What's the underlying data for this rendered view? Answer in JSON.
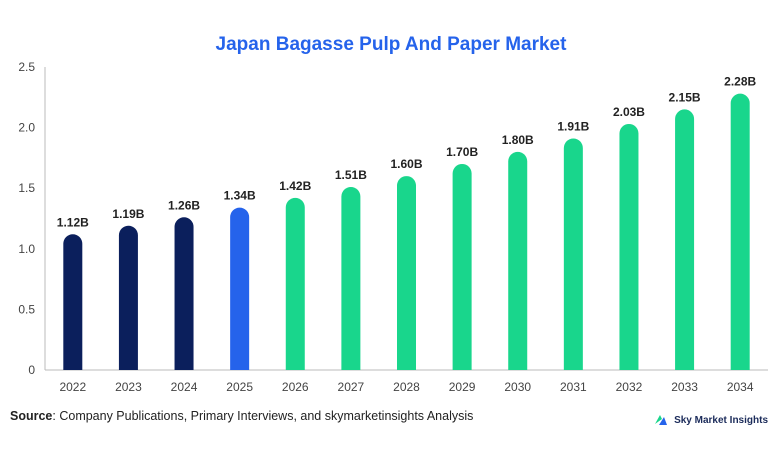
{
  "chart_data": {
    "type": "bar",
    "title": "Japan Bagasse Pulp And Paper Market",
    "categories": [
      "2022",
      "2023",
      "2024",
      "2025",
      "2026",
      "2027",
      "2028",
      "2029",
      "2030",
      "2031",
      "2032",
      "2033",
      "2034"
    ],
    "values": [
      1.12,
      1.19,
      1.26,
      1.34,
      1.42,
      1.51,
      1.6,
      1.7,
      1.8,
      1.91,
      2.03,
      2.15,
      2.28
    ],
    "data_labels": [
      "1.12B",
      "1.19B",
      "1.26B",
      "1.34B",
      "1.42B",
      "1.51B",
      "1.60B",
      "1.70B",
      "1.80B",
      "1.91B",
      "2.03B",
      "2.15B",
      "2.28B"
    ],
    "bar_colors": [
      "#0b1f5c",
      "#0b1f5c",
      "#0b1f5c",
      "#2563eb",
      "#19d68c",
      "#19d68c",
      "#19d68c",
      "#19d68c",
      "#19d68c",
      "#19d68c",
      "#19d68c",
      "#19d68c",
      "#19d68c"
    ],
    "ylim": [
      0,
      2.5
    ],
    "yticks": [
      "0",
      "0.5",
      "1.0",
      "1.5",
      "2.0",
      "2.5"
    ],
    "xlabel": "",
    "ylabel": "",
    "grid": false
  },
  "colors": {
    "title": "#2563eb",
    "axis": "#bbbbbb",
    "tick_text": "#444444",
    "label_text": "#222222"
  },
  "source": {
    "label": "Source",
    "text": ": Company Publications, Primary Interviews, and skymarketinsights Analysis"
  },
  "logo": {
    "text": "Sky Market Insights",
    "icon": "sky-market-insights-logo-icon"
  }
}
